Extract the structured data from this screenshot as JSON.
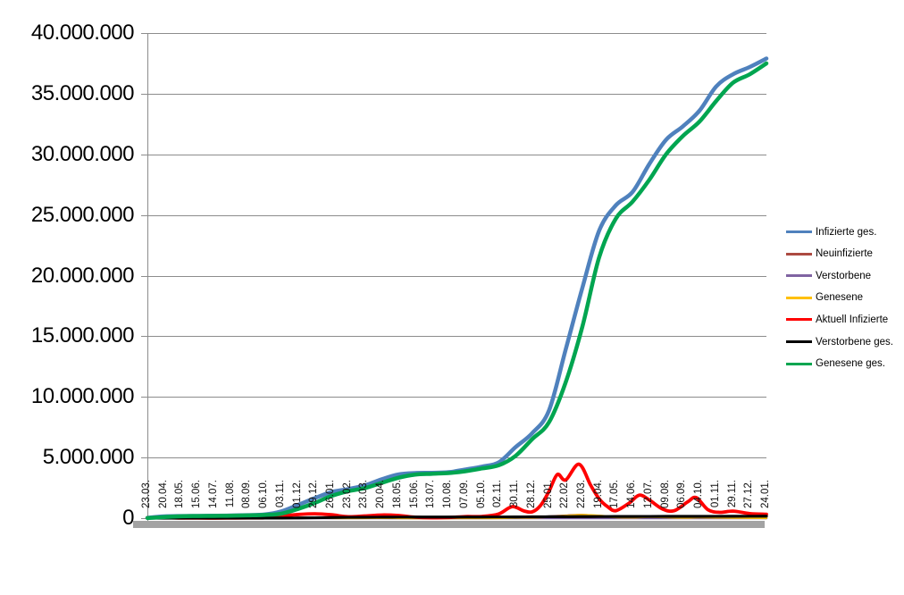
{
  "chart_data": {
    "type": "line",
    "title": "",
    "xlabel": "",
    "ylabel": "",
    "ylim": [
      0,
      40000000
    ],
    "grid": true,
    "grid_color": "#8C8C8C",
    "axis_color": "#8C8C8C",
    "axis_band_color": "#A3A3A3",
    "legend_position": "right",
    "y_ticks": [
      0,
      5000000,
      10000000,
      15000000,
      20000000,
      25000000,
      30000000,
      35000000,
      40000000
    ],
    "y_tick_labels": [
      "0",
      "5.000.000",
      "10.000.000",
      "15.000.000",
      "20.000.000",
      "25.000.000",
      "30.000.000",
      "35.000.000",
      "40.000.000"
    ],
    "categories": [
      "23.03.",
      "20.04.",
      "18.05.",
      "15.06.",
      "14.07.",
      "11.08.",
      "08.09.",
      "06.10.",
      "03.11.",
      "01.12.",
      "29.12.",
      "26.01.",
      "23.02.",
      "23.03.",
      "20.04.",
      "18.05.",
      "15.06.",
      "13.07.",
      "10.08.",
      "07.09.",
      "05.10.",
      "02.11.",
      "30.11.",
      "28.12.",
      "25.01.",
      "22.02.",
      "22.03.",
      "19.04.",
      "17.05.",
      "14.06.",
      "12.07.",
      "09.08.",
      "06.09.",
      "04.10.",
      "01.11.",
      "29.11.",
      "27.12.",
      "24.01."
    ],
    "series": [
      {
        "name": "Infizierte ges.",
        "color": "#4F81BD",
        "width": 4.5,
        "points": [
          [
            0,
            30000
          ],
          [
            1,
            145000
          ],
          [
            2,
            176000
          ],
          [
            3,
            187000
          ],
          [
            4,
            200000
          ],
          [
            5,
            218000
          ],
          [
            6,
            253000
          ],
          [
            7,
            306000
          ],
          [
            8,
            560000
          ],
          [
            9,
            1090000
          ],
          [
            10,
            1650000
          ],
          [
            11,
            2150000
          ],
          [
            12,
            2400000
          ],
          [
            13,
            2700000
          ],
          [
            14,
            3200000
          ],
          [
            15,
            3600000
          ],
          [
            16,
            3720000
          ],
          [
            17,
            3740000
          ],
          [
            18,
            3790000
          ],
          [
            19,
            4010000
          ],
          [
            20,
            4250000
          ],
          [
            21,
            4600000
          ],
          [
            22,
            5850000
          ],
          [
            23,
            7010000
          ],
          [
            24,
            8870000
          ],
          [
            25,
            13900000
          ],
          [
            26,
            19000000
          ],
          [
            27,
            23700000
          ],
          [
            28,
            25800000
          ],
          [
            29,
            26900000
          ],
          [
            30,
            29200000
          ],
          [
            31,
            31200000
          ],
          [
            32,
            32300000
          ],
          [
            33,
            33600000
          ],
          [
            34,
            35600000
          ],
          [
            35,
            36600000
          ],
          [
            36,
            37200000
          ],
          [
            37,
            37900000
          ]
        ]
      },
      {
        "name": "Neuinfizierte",
        "color": "#AC4A41",
        "width": 2.5,
        "points": [
          [
            0,
            4000
          ],
          [
            1,
            2000
          ],
          [
            2,
            600
          ],
          [
            3,
            300
          ],
          [
            4,
            400
          ],
          [
            5,
            1000
          ],
          [
            6,
            1500
          ],
          [
            7,
            3000
          ],
          [
            8,
            18000
          ],
          [
            9,
            18000
          ],
          [
            10,
            22000
          ],
          [
            11,
            12000
          ],
          [
            12,
            8000
          ],
          [
            13,
            16000
          ],
          [
            14,
            20000
          ],
          [
            15,
            8000
          ],
          [
            16,
            1000
          ],
          [
            17,
            1500
          ],
          [
            18,
            4000
          ],
          [
            19,
            10000
          ],
          [
            20,
            8000
          ],
          [
            21,
            20000
          ],
          [
            22,
            60000
          ],
          [
            23,
            45000
          ],
          [
            24,
            140000
          ],
          [
            25,
            210000
          ],
          [
            26,
            270000
          ],
          [
            27,
            150000
          ],
          [
            28,
            60000
          ],
          [
            29,
            70000
          ],
          [
            30,
            120000
          ],
          [
            31,
            60000
          ],
          [
            32,
            40000
          ],
          [
            33,
            80000
          ],
          [
            34,
            50000
          ],
          [
            35,
            40000
          ],
          [
            36,
            30000
          ],
          [
            37,
            12000
          ]
        ]
      },
      {
        "name": "Verstorbene",
        "color": "#8064A2",
        "width": 2.5,
        "points": [
          [
            0,
            500
          ],
          [
            9,
            900
          ],
          [
            18,
            400
          ],
          [
            24,
            1500
          ],
          [
            30,
            600
          ],
          [
            37,
            300
          ]
        ]
      },
      {
        "name": "Genesene",
        "color": "#FFC000",
        "width": 2.5,
        "points": [
          [
            0,
            2000
          ],
          [
            1,
            3000
          ],
          [
            2,
            1000
          ],
          [
            3,
            300
          ],
          [
            7,
            2000
          ],
          [
            8,
            8000
          ],
          [
            9,
            17000
          ],
          [
            10,
            20000
          ],
          [
            11,
            15000
          ],
          [
            12,
            9000
          ],
          [
            13,
            12000
          ],
          [
            14,
            19000
          ],
          [
            15,
            12000
          ],
          [
            16,
            3000
          ],
          [
            17,
            1000
          ],
          [
            18,
            3000
          ],
          [
            19,
            8000
          ],
          [
            20,
            8000
          ],
          [
            21,
            12000
          ],
          [
            22,
            45000
          ],
          [
            23,
            50000
          ],
          [
            24,
            100000
          ],
          [
            25,
            190000
          ],
          [
            26,
            260000
          ],
          [
            27,
            200000
          ],
          [
            28,
            80000
          ],
          [
            29,
            65000
          ],
          [
            30,
            110000
          ],
          [
            31,
            80000
          ],
          [
            32,
            45000
          ],
          [
            33,
            70000
          ],
          [
            34,
            55000
          ],
          [
            35,
            40000
          ],
          [
            36,
            30000
          ],
          [
            37,
            15000
          ]
        ]
      },
      {
        "name": "Aktuell Infizierte",
        "color": "#FF0000",
        "width": 3.8,
        "points": [
          [
            0,
            25000
          ],
          [
            0.8,
            72000
          ],
          [
            1,
            60000
          ],
          [
            2,
            12000
          ],
          [
            3,
            7000
          ],
          [
            4,
            6000
          ],
          [
            5,
            12000
          ],
          [
            6,
            20000
          ],
          [
            7,
            33000
          ],
          [
            8,
            180000
          ],
          [
            9,
            300000
          ],
          [
            10,
            360000
          ],
          [
            11,
            280000
          ],
          [
            12,
            120000
          ],
          [
            13,
            180000
          ],
          [
            14,
            260000
          ],
          [
            15,
            220000
          ],
          [
            16,
            80000
          ],
          [
            17,
            30000
          ],
          [
            18,
            55000
          ],
          [
            19,
            130000
          ],
          [
            20,
            140000
          ],
          [
            21,
            350000
          ],
          [
            21.8,
            950000
          ],
          [
            22.5,
            600000
          ],
          [
            23,
            520000
          ],
          [
            23.5,
            1050000
          ],
          [
            24,
            2200000
          ],
          [
            24.5,
            3600000
          ],
          [
            25,
            3150000
          ],
          [
            25.8,
            4450000
          ],
          [
            26.5,
            2700000
          ],
          [
            27,
            1600000
          ],
          [
            27.5,
            950000
          ],
          [
            28,
            620000
          ],
          [
            28.8,
            1250000
          ],
          [
            29.4,
            1900000
          ],
          [
            30,
            1500000
          ],
          [
            30.8,
            750000
          ],
          [
            31.5,
            620000
          ],
          [
            32.3,
            1350000
          ],
          [
            32.8,
            1700000
          ],
          [
            33.5,
            700000
          ],
          [
            34.2,
            480000
          ],
          [
            35,
            580000
          ],
          [
            36,
            380000
          ],
          [
            37,
            320000
          ]
        ]
      },
      {
        "name": "Verstorbene ges.",
        "color": "#000000",
        "width": 3.2,
        "points": [
          [
            0,
            100
          ],
          [
            4,
            9000
          ],
          [
            8,
            11000
          ],
          [
            9,
            17000
          ],
          [
            10,
            32000
          ],
          [
            11,
            54000
          ],
          [
            12,
            69000
          ],
          [
            13,
            75000
          ],
          [
            14,
            81000
          ],
          [
            15,
            86000
          ],
          [
            16,
            90000
          ],
          [
            18,
            92000
          ],
          [
            20,
            94000
          ],
          [
            21,
            96000
          ],
          [
            22,
            101000
          ],
          [
            23,
            111000
          ],
          [
            24,
            117000
          ],
          [
            25,
            122000
          ],
          [
            26,
            127000
          ],
          [
            27,
            133000
          ],
          [
            28,
            138000
          ],
          [
            29,
            140000
          ],
          [
            30,
            142000
          ],
          [
            31,
            145000
          ],
          [
            32,
            148000
          ],
          [
            33,
            150000
          ],
          [
            34,
            153000
          ],
          [
            35,
            156000
          ],
          [
            36,
            161000
          ],
          [
            37,
            165000
          ]
        ]
      },
      {
        "name": "Genesene ges.",
        "color": "#00A550",
        "width": 4.5,
        "points": [
          [
            0,
            10000
          ],
          [
            1,
            88000
          ],
          [
            2,
            156000
          ],
          [
            3,
            174000
          ],
          [
            4,
            186000
          ],
          [
            5,
            200000
          ],
          [
            6,
            230000
          ],
          [
            7,
            270000
          ],
          [
            8,
            370000
          ],
          [
            9,
            760000
          ],
          [
            10,
            1250000
          ],
          [
            11,
            1830000
          ],
          [
            12,
            2220000
          ],
          [
            13,
            2480000
          ],
          [
            14,
            2910000
          ],
          [
            15,
            3330000
          ],
          [
            16,
            3590000
          ],
          [
            17,
            3660000
          ],
          [
            18,
            3720000
          ],
          [
            19,
            3870000
          ],
          [
            20,
            4100000
          ],
          [
            21,
            4360000
          ],
          [
            22,
            5130000
          ],
          [
            23,
            6520000
          ],
          [
            24,
            7900000
          ],
          [
            25,
            11200000
          ],
          [
            26,
            15800000
          ],
          [
            27,
            21500000
          ],
          [
            28,
            24700000
          ],
          [
            29,
            26100000
          ],
          [
            30,
            27900000
          ],
          [
            31,
            30000000
          ],
          [
            32,
            31500000
          ],
          [
            33,
            32700000
          ],
          [
            34,
            34400000
          ],
          [
            35,
            35900000
          ],
          [
            36,
            36600000
          ],
          [
            37,
            37500000
          ]
        ]
      }
    ]
  },
  "legend": {
    "entries": [
      {
        "label": "Infizierte ges.",
        "color": "#4F81BD"
      },
      {
        "label": "Neuinfizierte",
        "color": "#AC4A41"
      },
      {
        "label": "Verstorbene",
        "color": "#8064A2"
      },
      {
        "label": "Genesene",
        "color": "#FFC000"
      },
      {
        "label": "Aktuell Infizierte",
        "color": "#FF0000"
      },
      {
        "label": "Verstorbene ges.",
        "color": "#000000"
      },
      {
        "label": "Genesene ges.",
        "color": "#00A550"
      }
    ]
  }
}
